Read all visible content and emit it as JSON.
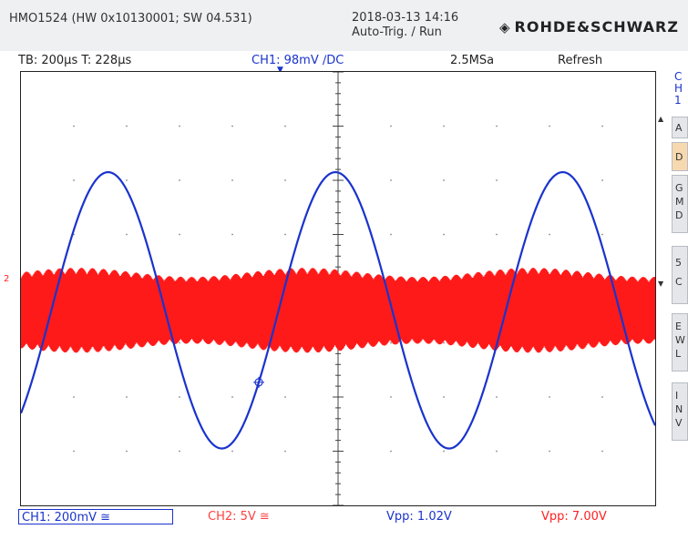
{
  "header": {
    "device": "HMO1524 (HW 0x10130001; SW 04.531)",
    "datetime": "2018-03-13 14:16",
    "trigger_status": "Auto-Trig. / Run",
    "brand": "ROHDE&SCHWARZ",
    "brand_icon": "rs-diamond-logo-icon"
  },
  "status": {
    "timebase": "TB: 200µs  T: 228µs",
    "ch1": "CH1: 98mV ∕DC",
    "sample_rate": "2.5MSa",
    "mode": "Refresh"
  },
  "side_menu": {
    "header": [
      "C",
      "H",
      "1"
    ],
    "buttons": [
      {
        "lines": [
          "A"
        ]
      },
      {
        "lines": [
          "D"
        ],
        "selected": true
      },
      {
        "lines": [
          "G",
          "M",
          "D"
        ]
      },
      {
        "lines": [
          "5",
          "C"
        ]
      },
      {
        "lines": [
          "E",
          "W",
          "L"
        ]
      },
      {
        "lines": [
          "I",
          "N",
          "V"
        ]
      }
    ]
  },
  "bottom": {
    "ch1": "CH1: 200mV ≅",
    "ch2": "CH2: 5V ≅",
    "vpp1": "Vpp: 1.02V",
    "vpp2": "Vpp: 7.00V"
  },
  "markers": {
    "ch2_level": "2",
    "ch1_trigger": "▼"
  },
  "colors": {
    "ch1": "#1a33cc",
    "ch2": "#ff1a1a",
    "grid": "#888888",
    "background": "#ffffff"
  },
  "chart_data": {
    "type": "line",
    "xlabel": "",
    "ylabel": "",
    "grid": true,
    "divisions": {
      "x": 12,
      "y": 8
    },
    "series": [
      {
        "name": "CH1",
        "color": "#1a33cc",
        "waveform": "sine",
        "vpp_div": 5.1,
        "period_div": 4.3,
        "peak_at_div": 5.95,
        "offset_div": -0.4,
        "vpp": "1.02V"
      },
      {
        "name": "CH2",
        "color": "#ff1a1a",
        "waveform": "modulated carrier",
        "vpp_div": 1.4,
        "offset_div": -0.4,
        "envelope_period_div": 4.3,
        "vpp": "7.00V"
      }
    ]
  }
}
